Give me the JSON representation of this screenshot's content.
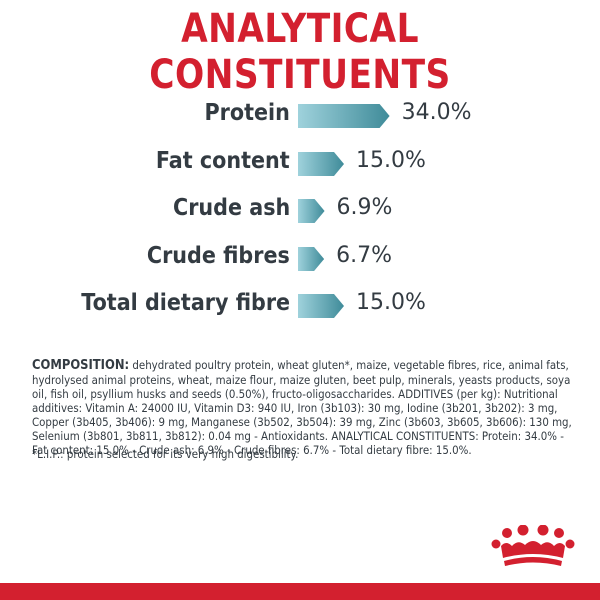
{
  "title": "ANALYTICAL CONSTITUENTS",
  "constituents": [
    {
      "label": "Protein",
      "value": "34.0%",
      "percent": 34.0
    },
    {
      "label": "Fat content",
      "value": "15.0%",
      "percent": 15.0
    },
    {
      "label": "Crude ash",
      "value": "6.9%",
      "percent": 6.9
    },
    {
      "label": "Crude fibres",
      "value": "6.7%",
      "percent": 6.7
    },
    {
      "label": "Total dietary fibre",
      "value": "15.0%",
      "percent": 15.0
    }
  ],
  "composition": {
    "heading": "COMPOSITION:",
    "text": " dehydrated poultry protein, wheat gluten*, maize, vegetable fibres, rice, animal fats, hydrolysed animal proteins, wheat, maize flour, maize gluten, beet pulp, minerals, yeasts products, soya oil, fish oil, psyllium husks and seeds (0.50%), fructo-oligosaccharides. ADDITIVES (per kg): Nutritional additives: Vitamin A: 24000 IU, Vitamin D3: 940 IU, Iron (3b103): 30 mg, Iodine (3b201, 3b202): 3 mg, Copper (3b405, 3b406): 9 mg, Manganese (3b502, 3b504): 39 mg, Zinc (3b603, 3b605, 3b606): 130 mg, Selenium (3b801, 3b811, 3b812): 0.04 mg - Antioxidants. ANALYTICAL CONSTITUENTS: Protein: 34.0% - Fat content: 15.0% - Crude ash: 6.9% - Crude fibres: 6.7% - Total dietary fibre: 15.0%.",
    "footnote": "*L.I.P.: protein selected for its very high digestibility."
  },
  "colors": {
    "title": "#d3202f",
    "text": "#333b42",
    "bar_dark": "#3f8b99",
    "bar_light": "#9fd2dc",
    "footer": "#d3202f"
  },
  "logo": {
    "icon": "royal-canin-crown-icon"
  }
}
